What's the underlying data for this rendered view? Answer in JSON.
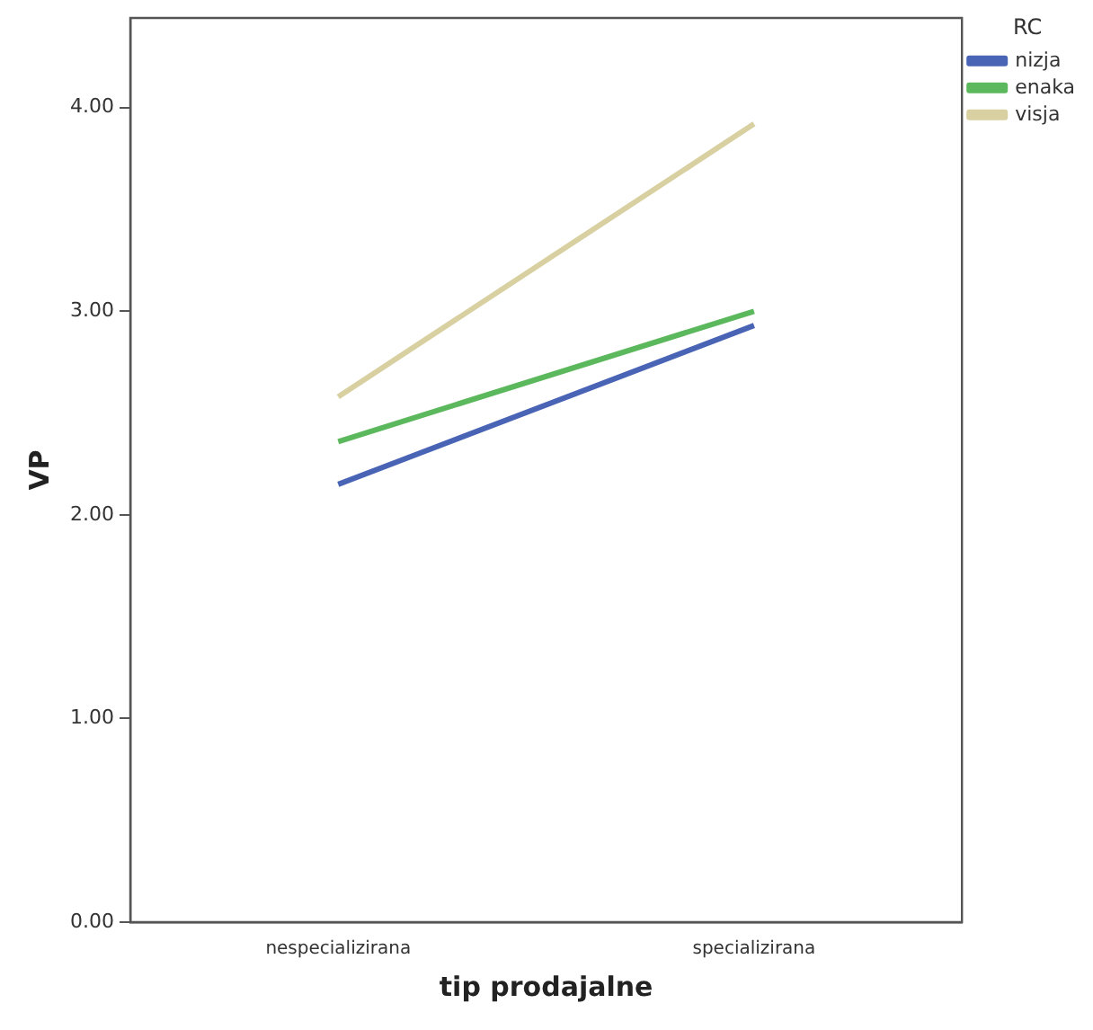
{
  "chart_data": {
    "type": "line",
    "xlabel": "tip prodajalne",
    "ylabel": "VP",
    "legend_title": "RC",
    "legend": "top right",
    "grid": false,
    "marker": "none",
    "line_style": "solid",
    "categories": [
      "nespecializirana",
      "specializirana"
    ],
    "ylim": [
      0,
      4.44
    ],
    "yticks": [
      {
        "value": 0,
        "label": "0.00"
      },
      {
        "value": 1,
        "label": "1.00"
      },
      {
        "value": 2,
        "label": "2.00"
      },
      {
        "value": 3,
        "label": "3.00"
      },
      {
        "value": 4,
        "label": "4.00"
      }
    ],
    "series": [
      {
        "name": "nizja",
        "color": "#4a64b5",
        "values": [
          2.15,
          2.93
        ]
      },
      {
        "name": "enaka",
        "color": "#5cb85c",
        "values": [
          2.36,
          3.0
        ]
      },
      {
        "name": "visja",
        "color": "#d9d0a2",
        "values": [
          2.58,
          3.92
        ]
      }
    ]
  }
}
